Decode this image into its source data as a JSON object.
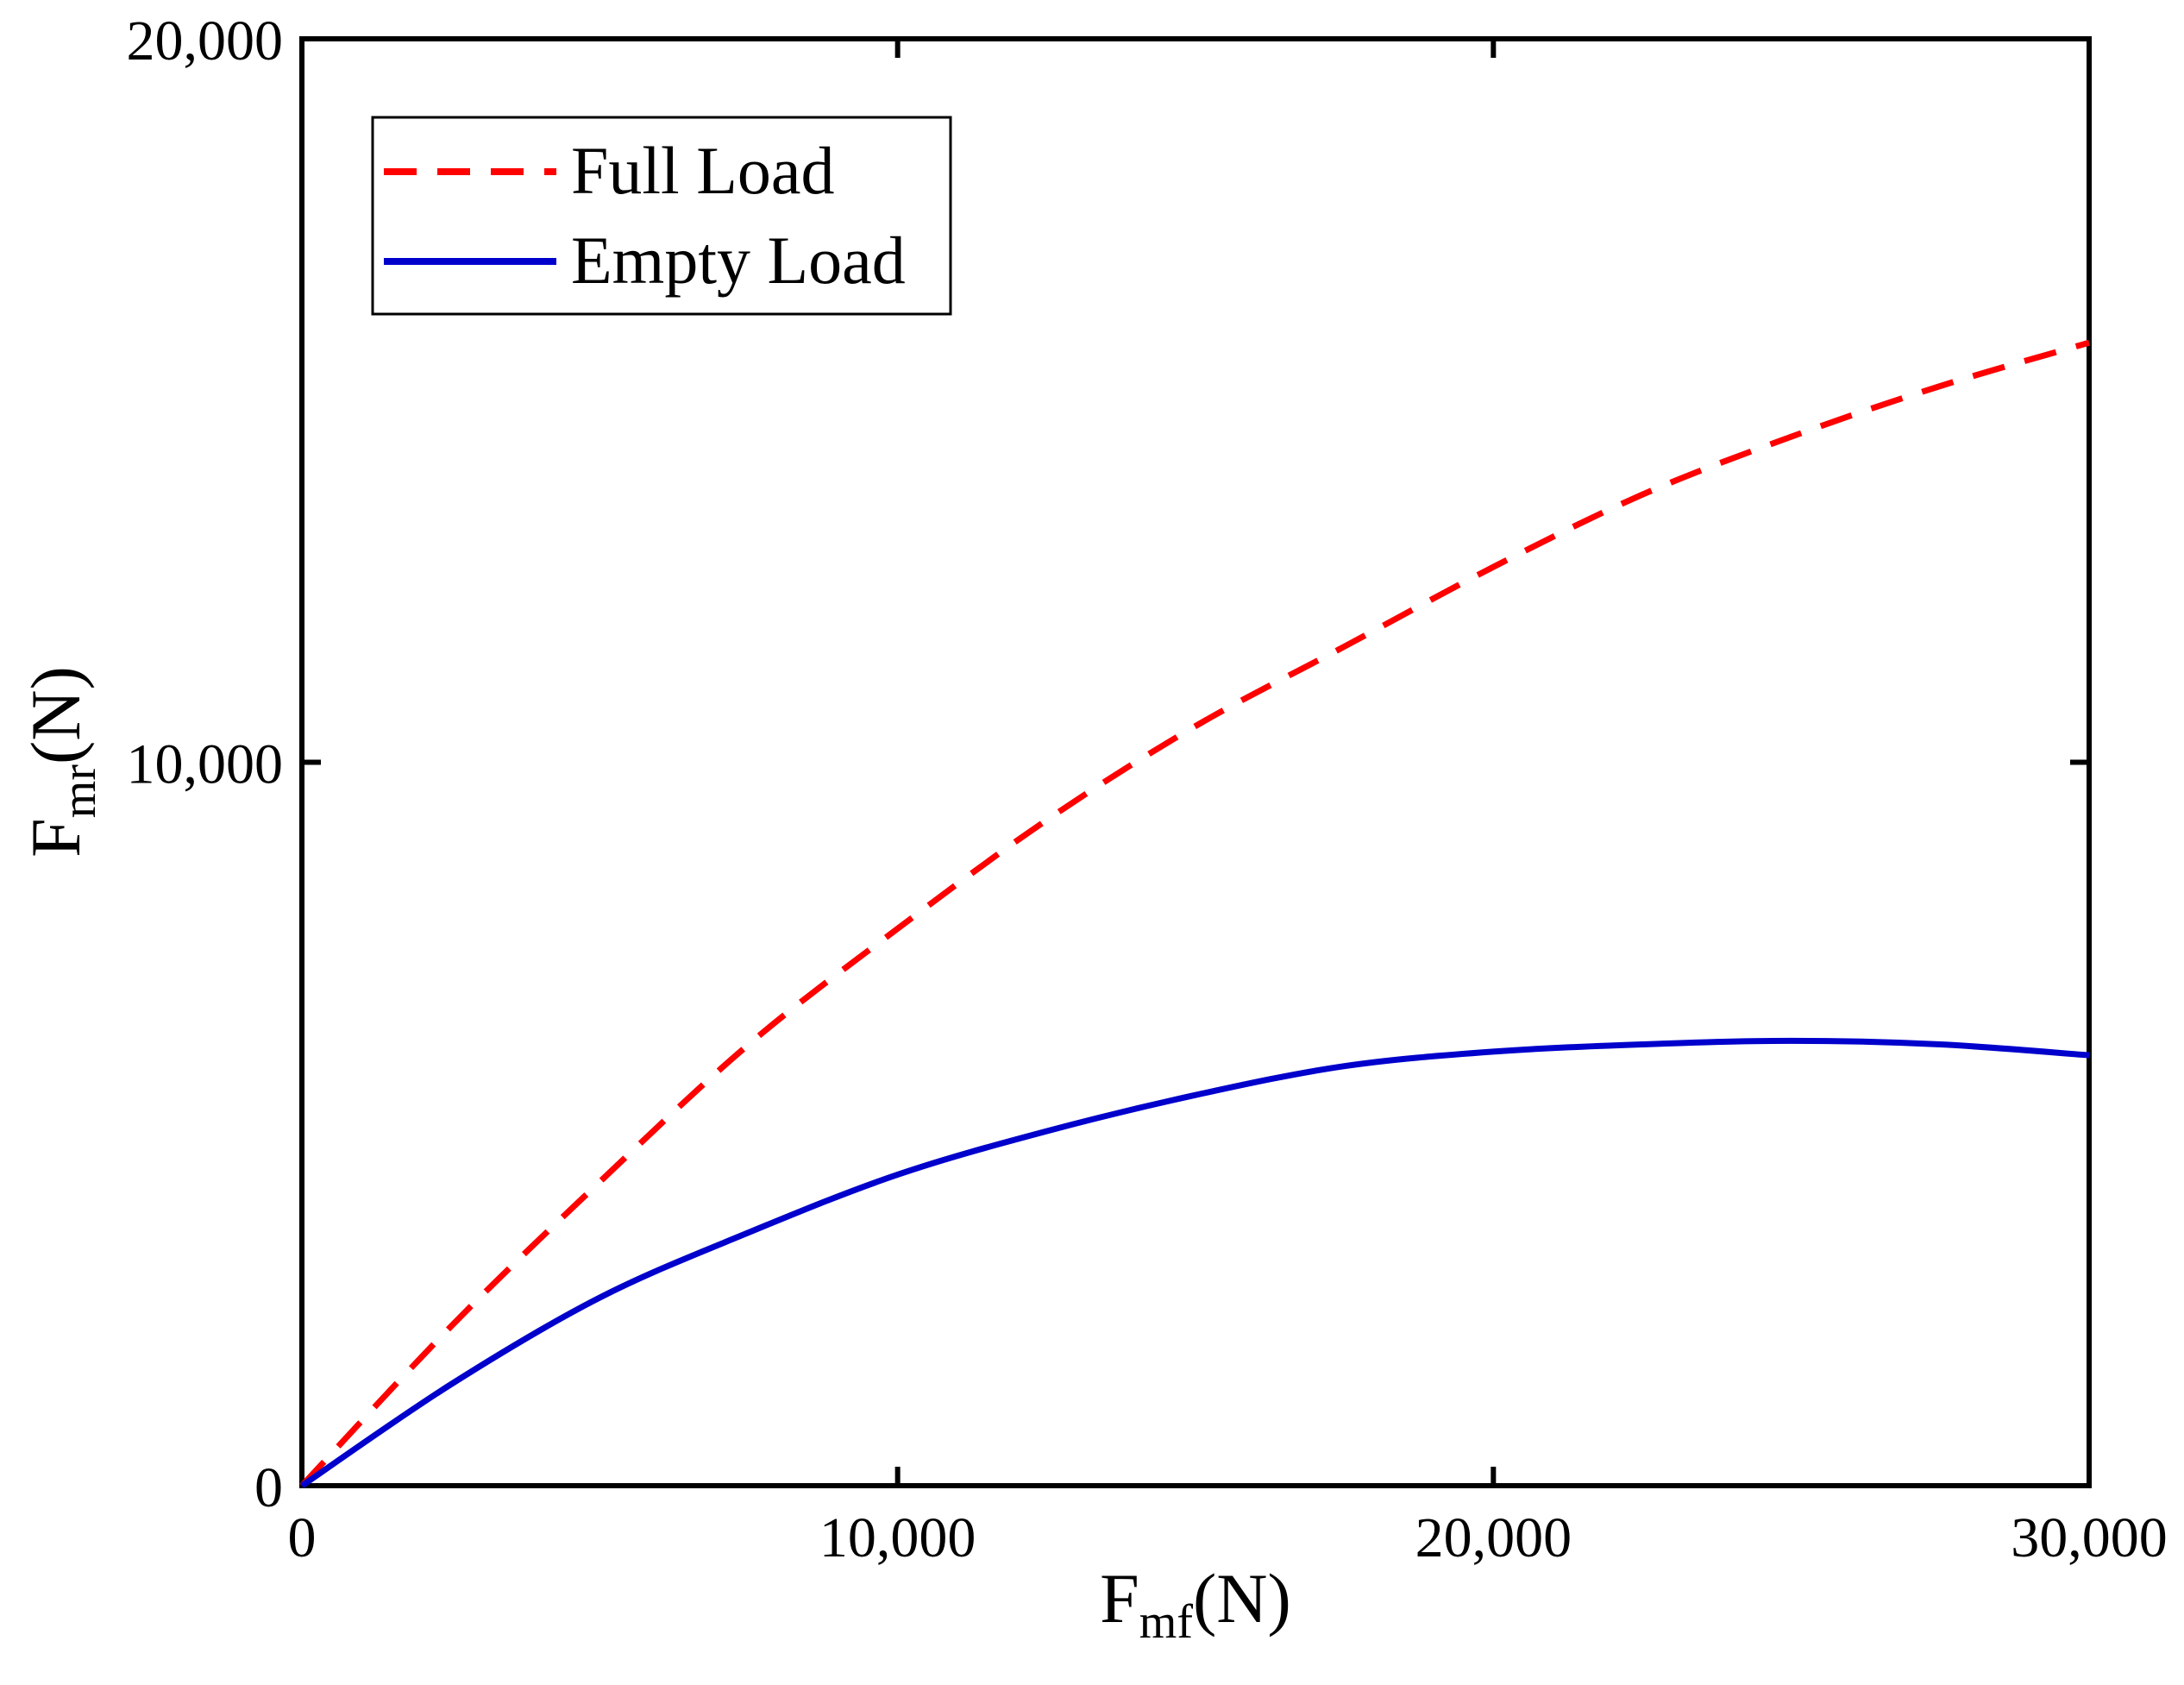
{
  "chart_data": {
    "type": "line",
    "title": "",
    "xlabel": {
      "main": "F",
      "sub": "mf",
      "unit": "(N)"
    },
    "ylabel": {
      "main": "F",
      "sub": "mr",
      "unit": "(N)"
    },
    "xlim": [
      0,
      30000
    ],
    "ylim": [
      0,
      20000
    ],
    "x_ticks": [
      0,
      10000,
      20000,
      30000
    ],
    "y_ticks": [
      0,
      10000,
      20000
    ],
    "x_tick_labels": [
      "0",
      "10,000",
      "20,000",
      "30,000"
    ],
    "y_tick_labels": [
      "0",
      "10,000",
      "20,000"
    ],
    "grid": false,
    "legend_position": "top-left",
    "series": [
      {
        "name": "Full Load",
        "color": "#ff0000",
        "style": "dashed",
        "x": [
          0,
          2500,
          5000,
          7500,
          10000,
          12500,
          15000,
          17500,
          20000,
          22500,
          25000,
          27500,
          30000
        ],
        "y": [
          0,
          2200,
          4200,
          6100,
          7700,
          9200,
          10500,
          11600,
          12700,
          13700,
          14500,
          15200,
          15800
        ]
      },
      {
        "name": "Empty Load",
        "color": "#0000cc",
        "style": "solid",
        "x": [
          0,
          2500,
          5000,
          7500,
          10000,
          12500,
          15000,
          17500,
          20000,
          22500,
          25000,
          27500,
          30000
        ],
        "y": [
          0,
          1400,
          2600,
          3500,
          4300,
          4900,
          5400,
          5800,
          6000,
          6100,
          6150,
          6100,
          5950
        ]
      }
    ]
  }
}
